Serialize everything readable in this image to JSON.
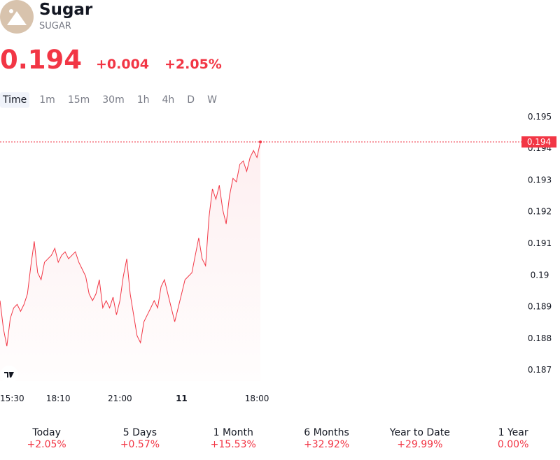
{
  "header": {
    "name": "Sugar",
    "symbol": "SUGAR",
    "price": "0.194",
    "change": "+0.004",
    "change_percent": "+2.05%"
  },
  "tabs": [
    "Time",
    "1m",
    "15m",
    "30m",
    "1h",
    "4h",
    "D",
    "W"
  ],
  "chart_data": {
    "type": "line",
    "color": "#f23645",
    "values": [
      0.18919,
      0.1883,
      0.18775,
      0.18863,
      0.18896,
      0.18907,
      0.18885,
      0.18907,
      0.1894,
      0.19029,
      0.19106,
      0.19007,
      0.18985,
      0.1904,
      0.19051,
      0.19062,
      0.19084,
      0.1904,
      0.19062,
      0.19073,
      0.19051,
      0.19062,
      0.19073,
      0.1904,
      0.19018,
      0.18996,
      0.1894,
      0.18919,
      0.1894,
      0.18985,
      0.18896,
      0.18919,
      0.18896,
      0.1893,
      0.18874,
      0.18919,
      0.18996,
      0.19051,
      0.1894,
      0.18874,
      0.18808,
      0.18786,
      0.18852,
      0.18874,
      0.18896,
      0.18919,
      0.18896,
      0.18963,
      0.18985,
      0.1894,
      0.18896,
      0.18852,
      0.18896,
      0.1894,
      0.18985,
      0.18996,
      0.19007,
      0.19062,
      0.19117,
      0.19051,
      0.19029,
      0.19183,
      0.19272,
      0.19239,
      0.19283,
      0.19206,
      0.19161,
      0.1925,
      0.19305,
      0.19294,
      0.19349,
      0.1936,
      0.19327,
      0.19371,
      0.19393,
      0.19371,
      0.1942
    ],
    "xlim": [
      0,
      76
    ],
    "xticks": [
      {
        "value": 0,
        "label": "15:30"
      },
      {
        "value": 17,
        "label": "18:10"
      },
      {
        "value": 35,
        "label": "21:00"
      },
      {
        "value": 53,
        "label": "11"
      },
      {
        "value": 75,
        "label": "18:00"
      }
    ],
    "ylim": [
      0.18665,
      0.19515
    ],
    "yticks": [
      0.187,
      0.188,
      0.189,
      0.19,
      0.191,
      0.192,
      0.193,
      0.194,
      0.195
    ],
    "last": {
      "value": 0.1942,
      "label": "0.194"
    }
  },
  "performance": [
    {
      "label": "Today",
      "value": "+2.05%"
    },
    {
      "label": "5 Days",
      "value": "+0.57%"
    },
    {
      "label": "1 Month",
      "value": "+15.53%"
    },
    {
      "label": "6 Months",
      "value": "+32.92%"
    },
    {
      "label": "Year to Date",
      "value": "+29.99%"
    },
    {
      "label": "1 Year",
      "value": "0.00%"
    }
  ]
}
